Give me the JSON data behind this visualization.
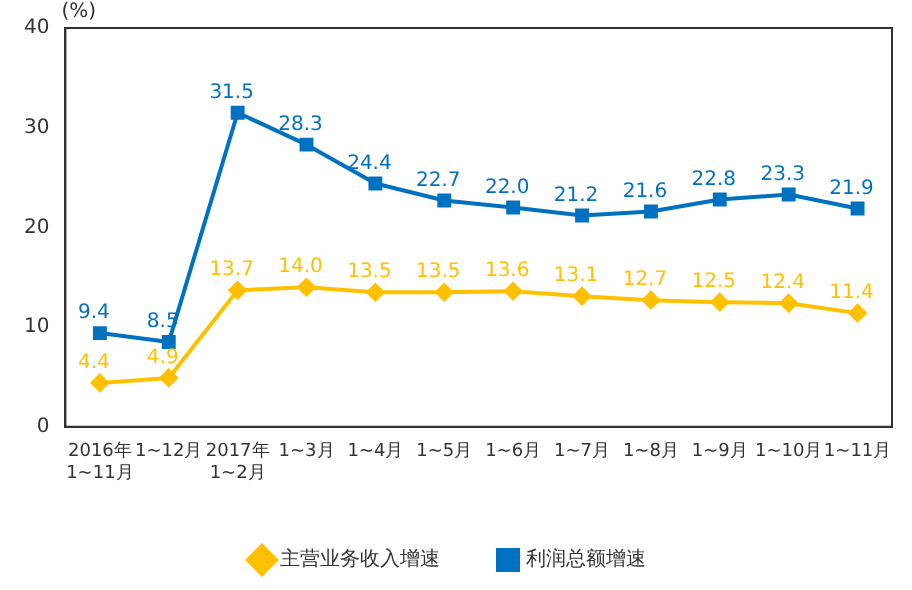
{
  "chart_data": {
    "type": "line",
    "ylabel": "(%)",
    "categories": [
      "2016年\n1~11月",
      "1~12月",
      "2017年\n1~2月",
      "1~3月",
      "1~4月",
      "1~5月",
      "1~6月",
      "1~7月",
      "1~8月",
      "1~9月",
      "1~10月",
      "1~11月"
    ],
    "series": [
      {
        "name": "主营业务收入增速",
        "color": "#ffc000",
        "marker": "diamond",
        "values": [
          4.4,
          4.9,
          13.7,
          14.0,
          13.5,
          13.5,
          13.6,
          13.1,
          12.7,
          12.5,
          12.4,
          11.4
        ],
        "value_labels": [
          "4.4",
          "4.9",
          "13.7",
          "14.0",
          "13.5",
          "13.5",
          "13.6",
          "13.1",
          "12.7",
          "12.5",
          "12.4",
          "11.4"
        ]
      },
      {
        "name": "利润总额增速",
        "color": "#0070c0",
        "marker": "square",
        "values": [
          9.4,
          8.5,
          31.5,
          28.3,
          24.4,
          22.7,
          22.0,
          21.2,
          21.6,
          22.8,
          23.3,
          21.9
        ],
        "value_labels": [
          "9.4",
          "8.5",
          "31.5",
          "28.3",
          "24.4",
          "22.7",
          "22.0",
          "21.2",
          "21.6",
          "22.8",
          "23.3",
          "21.9"
        ]
      }
    ],
    "ylim": [
      0,
      40
    ],
    "yticks": [
      0,
      10,
      20,
      30,
      40
    ],
    "grid": false,
    "legend": "bottom",
    "line_style": "solid"
  }
}
